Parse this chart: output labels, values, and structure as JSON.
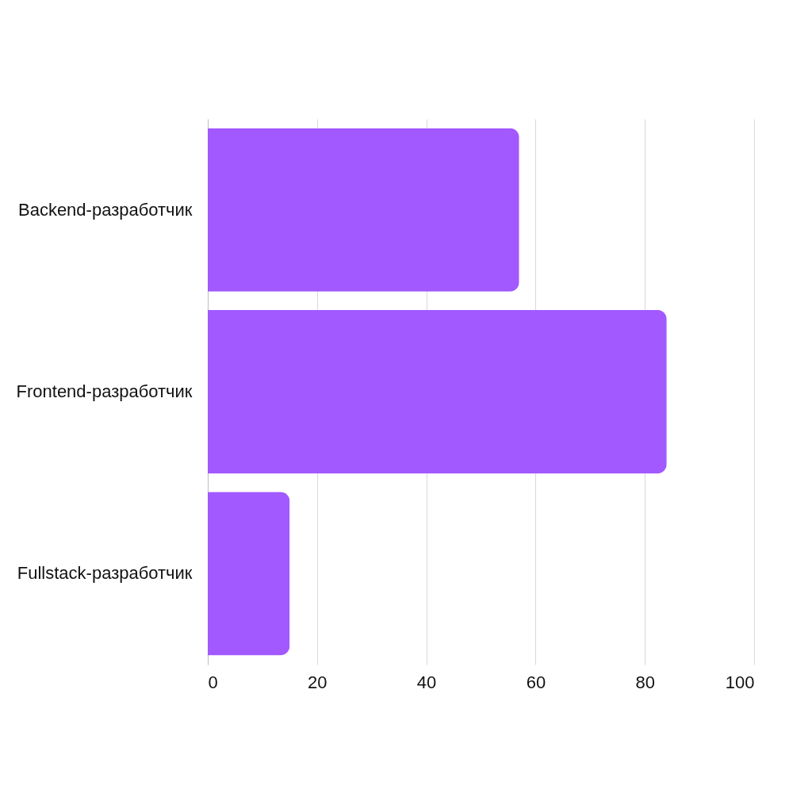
{
  "chart_data": {
    "type": "bar",
    "orientation": "horizontal",
    "categories": [
      "Backend-разработчик",
      "Frontend-разработчик",
      "Fullstack-разработчик"
    ],
    "values": [
      57,
      84,
      15
    ],
    "color": "#a259ff",
    "xlim": [
      0,
      100
    ],
    "xticks": [
      0,
      20,
      40,
      60,
      80,
      100
    ],
    "grid": "x"
  }
}
